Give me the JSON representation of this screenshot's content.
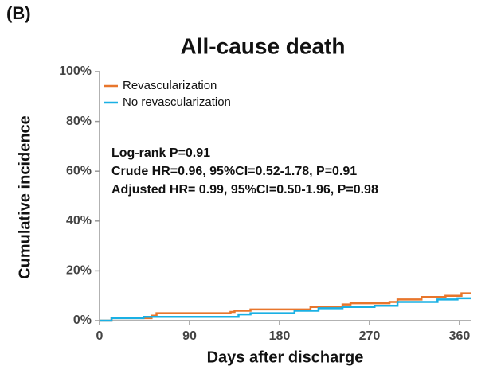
{
  "panel_label": "(B)",
  "chart_data": {
    "type": "step-line",
    "step": "post",
    "title": "All-cause death",
    "x_label": "Days after discharge",
    "y_label": "Cumulative incidence",
    "annotations": [
      "Log-rank P=0.91",
      "Crude HR=0.96, 95%CI=0.52-1.78, P=0.91",
      "Adjusted HR= 0.99, 95%CI=0.50-1.96, P=0.98"
    ],
    "legend": "upper left",
    "xlim": [
      0,
      372
    ],
    "xticks": [
      0,
      90,
      180,
      270,
      360
    ],
    "ylim": [
      0,
      100
    ],
    "yticks": [
      {
        "value": 0,
        "label": "0%"
      },
      {
        "value": 20,
        "label": "20%"
      },
      {
        "value": 40,
        "label": "40%"
      },
      {
        "value": 60,
        "label": "60%"
      },
      {
        "value": 80,
        "label": "80%"
      },
      {
        "value": 100,
        "label": "100%"
      }
    ],
    "series": [
      {
        "name": "Revascularization",
        "color": "#e8762c",
        "x": [
          0,
          12,
          52,
          57,
          131,
          135,
          151,
          211,
          243,
          251,
          290,
          298,
          322,
          346,
          362,
          372
        ],
        "values": [
          0,
          1,
          2,
          3,
          3.5,
          4,
          4.5,
          5.5,
          6.5,
          7,
          7.5,
          8.5,
          9.5,
          10,
          11,
          11
        ]
      },
      {
        "name": "No revascularization",
        "color": "#1ab0e4",
        "x": [
          0,
          12,
          44,
          139,
          151,
          195,
          219,
          243,
          275,
          298,
          338,
          358,
          372
        ],
        "values": [
          0,
          1,
          1.5,
          2.5,
          3,
          4,
          5,
          5.5,
          6,
          7.5,
          8.5,
          9,
          9
        ]
      }
    ]
  }
}
